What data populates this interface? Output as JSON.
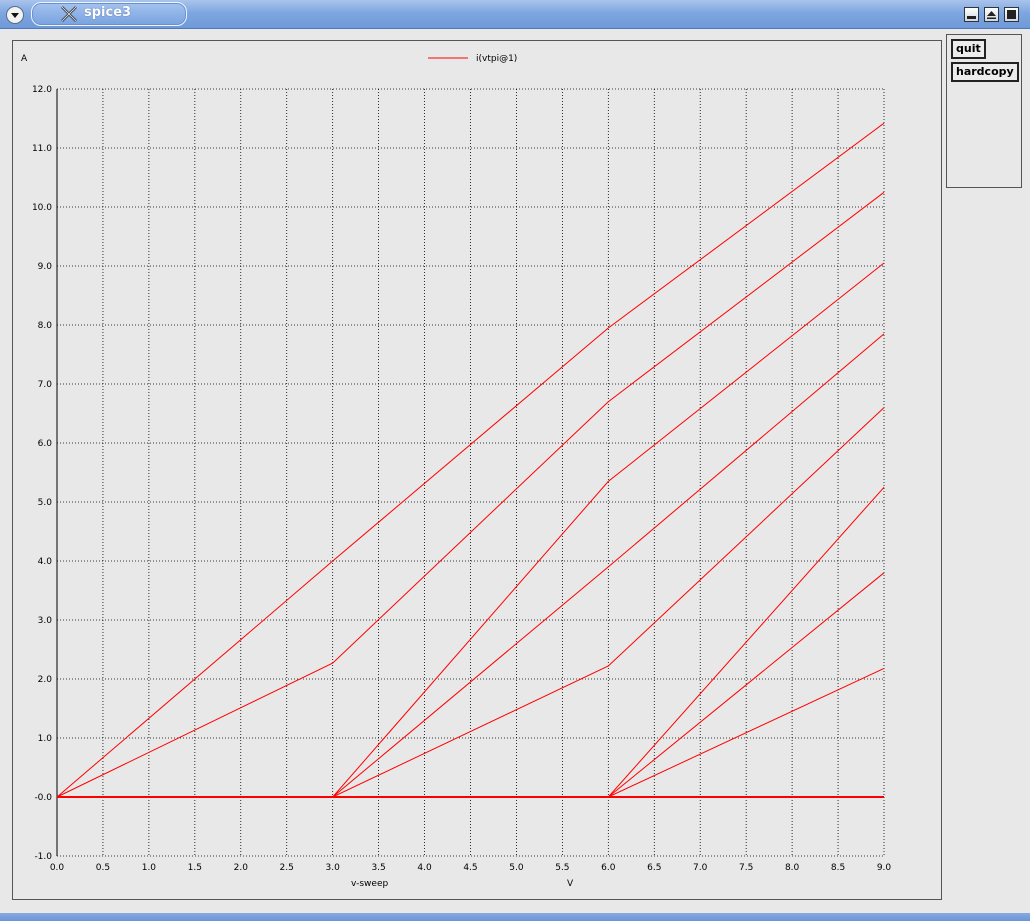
{
  "window": {
    "title": "spice3"
  },
  "buttons": {
    "quit": "quit",
    "hardcopy": "hardcopy"
  },
  "colors": {
    "series": "#ff0000",
    "grid": "#000000",
    "titlebar": "#7ea6e0"
  },
  "icons": [
    "window-menu-icon",
    "x-app-icon",
    "minimize-icon",
    "maximize-icon",
    "close-icon"
  ],
  "chart_data": {
    "type": "line",
    "ylabel": "A",
    "xlabel": "v-sweep",
    "xunit": "V",
    "xlim": [
      0,
      9
    ],
    "ylim": [
      -1,
      12
    ],
    "grid": true,
    "legend_position": "top-center",
    "x_tick_labels": [
      "0.0",
      "0.5",
      "1.0",
      "1.5",
      "2.0",
      "2.5",
      "3.0",
      "3.5",
      "4.0",
      "4.5",
      "5.0",
      "5.5",
      "6.0",
      "6.5",
      "7.0",
      "7.5",
      "8.0",
      "8.5",
      "9.0"
    ],
    "y_tick_labels": [
      "12.0",
      "11.0",
      "10.0",
      "9.0",
      "8.0",
      "7.0",
      "6.0",
      "5.0",
      "4.0",
      "3.0",
      "2.0",
      "1.0",
      "-0.0",
      "-1.0"
    ],
    "series": [
      {
        "name": "i(vtpi@1)",
        "x": [
          0,
          3,
          6,
          9
        ],
        "y": [
          0,
          4.0,
          7.95,
          11.42
        ]
      },
      {
        "x": [
          0,
          3,
          6,
          9
        ],
        "y": [
          0,
          2.27,
          6.7,
          10.25
        ]
      },
      {
        "x": [
          0,
          3,
          6,
          9
        ],
        "y": [
          0,
          0,
          5.35,
          9.05
        ]
      },
      {
        "x": [
          0,
          3,
          6,
          9
        ],
        "y": [
          0,
          0,
          3.9,
          7.85
        ]
      },
      {
        "x": [
          0,
          3,
          6,
          9
        ],
        "y": [
          0,
          0,
          2.22,
          6.6
        ]
      },
      {
        "x": [
          0,
          3,
          6,
          9
        ],
        "y": [
          0,
          0,
          0,
          5.25
        ]
      },
      {
        "x": [
          0,
          3,
          6,
          9
        ],
        "y": [
          0,
          0,
          0,
          3.8
        ]
      },
      {
        "x": [
          0,
          3,
          6,
          9
        ],
        "y": [
          0,
          0,
          0,
          2.18
        ]
      },
      {
        "x": [
          0,
          3,
          6,
          9
        ],
        "y": [
          0,
          0,
          0,
          0
        ]
      }
    ]
  }
}
